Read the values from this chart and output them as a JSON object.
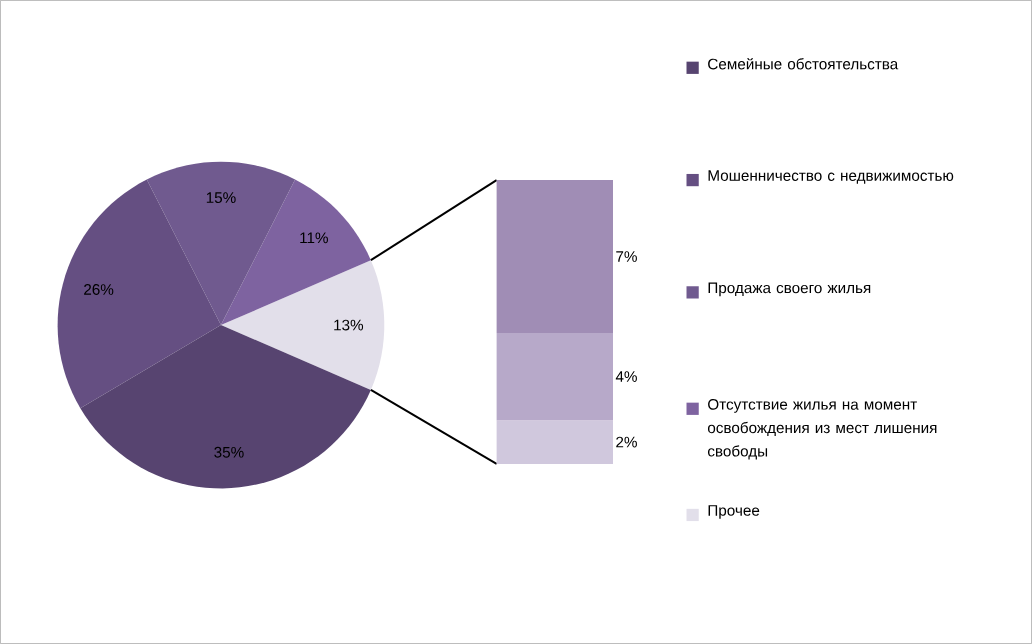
{
  "chart_data": [
    {
      "type": "pie",
      "categories": [
        "Семейные обстоятельства",
        "Мошенничество  с недвижимостью",
        "Продажа своего жилья",
        "Отсутствие жилья на момент освобождения из мест лишения свободы",
        "Прочее"
      ],
      "values": [
        35,
        26,
        15,
        11,
        13
      ],
      "value_labels": [
        "35%",
        "26%",
        "15%",
        "11%",
        "13%"
      ],
      "colors": [
        "#574470",
        "#654f82",
        "#705a8f",
        "#7e63a0",
        "#e2dfea"
      ],
      "legend": "right"
    },
    {
      "type": "bar",
      "stacked": true,
      "categories": [
        null
      ],
      "series": [
        {
          "color": "#d0c8dd",
          "values": [
            2
          ],
          "value_labels": [
            "2%"
          ]
        },
        {
          "color": "#b7a9c9",
          "values": [
            4
          ],
          "value_labels": [
            "4%"
          ]
        },
        {
          "color": "#a08db5",
          "values": [
            7
          ],
          "value_labels": [
            "7%"
          ]
        }
      ]
    }
  ]
}
